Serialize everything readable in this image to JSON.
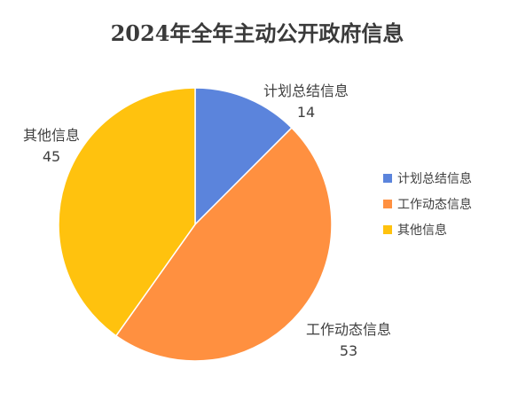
{
  "chart_data": {
    "type": "pie",
    "title": "2024年全年主动公开政府信息",
    "categories": [
      "计划总结信息",
      "工作动态信息",
      "其他信息"
    ],
    "values": [
      14,
      53,
      45
    ],
    "colors": [
      "#5B84DC",
      "#FF9040",
      "#FFC20E"
    ],
    "legend_position": "right"
  }
}
